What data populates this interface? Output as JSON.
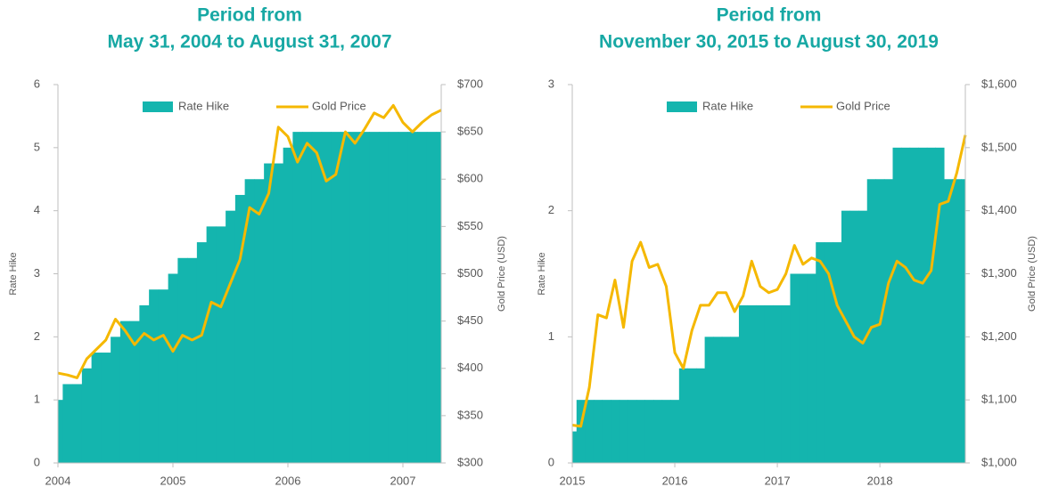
{
  "chart_data": [
    {
      "type": "combo",
      "title": [
        "Period from",
        "May 31, 2004 to August 31, 2007"
      ],
      "ylabel": "Rate Hike",
      "y2label": "Gold Price (USD)",
      "categories": [
        "2004",
        null,
        null,
        null,
        null,
        null,
        null,
        null,
        null,
        null,
        null,
        null,
        "2005",
        null,
        null,
        null,
        null,
        null,
        null,
        null,
        null,
        null,
        null,
        null,
        "2006",
        null,
        null,
        null,
        null,
        null,
        null,
        null,
        null,
        null,
        null,
        null,
        "2007",
        null,
        null,
        null,
        null
      ],
      "series": [
        {
          "name": "Rate Hike",
          "color": "#14b5ae",
          "values": [
            1,
            1.25,
            1.25,
            1.5,
            1.75,
            1.75,
            2,
            2.25,
            2.25,
            2.5,
            2.75,
            2.75,
            3,
            3.25,
            3.25,
            3.5,
            3.75,
            3.75,
            4,
            4.25,
            4.5,
            4.5,
            4.75,
            4.75,
            5,
            5.25,
            5.25,
            5.25,
            5.25,
            5.25,
            5.25,
            5.25,
            5.25,
            5.25,
            5.25,
            5.25,
            5.25,
            5.25,
            5.25,
            5.25,
            5.25
          ]
        },
        {
          "name": "Gold Price",
          "color": "#f5b800",
          "axis": "y2",
          "values": [
            395,
            393,
            390,
            410,
            420,
            430,
            452,
            440,
            425,
            437,
            430,
            435,
            418,
            435,
            430,
            435,
            470,
            465,
            490,
            515,
            570,
            563,
            585,
            655,
            645,
            618,
            638,
            628,
            598,
            605,
            650,
            638,
            653,
            670,
            665,
            678,
            660,
            650,
            660,
            668,
            673
          ]
        }
      ],
      "ylim": [
        0,
        6
      ],
      "yticks": [
        0,
        1,
        2,
        3,
        4,
        5,
        6
      ],
      "y2lim": [
        300,
        700
      ],
      "y2ticks": [
        {
          "value": 300,
          "label": "$300"
        },
        {
          "value": 350,
          "label": "$350"
        },
        {
          "value": 400,
          "label": "$400"
        },
        {
          "value": 450,
          "label": "$450"
        },
        {
          "value": 500,
          "label": "$500"
        },
        {
          "value": 550,
          "label": "$550"
        },
        {
          "value": 600,
          "label": "$600"
        },
        {
          "value": 650,
          "label": "$650"
        },
        {
          "value": 700,
          "label": "$700"
        }
      ]
    },
    {
      "type": "combo",
      "title": [
        "Period from",
        "November 30, 2015 to August 30, 2019"
      ],
      "ylabel": "Rate Hike",
      "y2label": "Gold Price (USD)",
      "categories": [
        "2015",
        null,
        null,
        null,
        null,
        null,
        null,
        null,
        null,
        null,
        null,
        null,
        "2016",
        null,
        null,
        null,
        null,
        null,
        null,
        null,
        null,
        null,
        null,
        null,
        "2017",
        null,
        null,
        null,
        null,
        null,
        null,
        null,
        null,
        null,
        null,
        null,
        "2018",
        null,
        null,
        null,
        null,
        null,
        null,
        null,
        null,
        null,
        null
      ],
      "series": [
        {
          "name": "Rate Hike",
          "color": "#14b5ae",
          "values": [
            0.25,
            0.5,
            0.5,
            0.5,
            0.5,
            0.5,
            0.5,
            0.5,
            0.5,
            0.5,
            0.5,
            0.5,
            0.5,
            0.75,
            0.75,
            0.75,
            1,
            1,
            1,
            1,
            1.25,
            1.25,
            1.25,
            1.25,
            1.25,
            1.25,
            1.5,
            1.5,
            1.5,
            1.75,
            1.75,
            1.75,
            2,
            2,
            2,
            2.25,
            2.25,
            2.25,
            2.5,
            2.5,
            2.5,
            2.5,
            2.5,
            2.5,
            2.25,
            2.25,
            2.25
          ]
        },
        {
          "name": "Gold Price",
          "color": "#f5b800",
          "axis": "y2",
          "values": [
            1060,
            1058,
            1120,
            1235,
            1230,
            1290,
            1215,
            1320,
            1350,
            1310,
            1315,
            1280,
            1175,
            1150,
            1210,
            1250,
            1250,
            1270,
            1270,
            1240,
            1265,
            1320,
            1280,
            1270,
            1275,
            1300,
            1345,
            1315,
            1325,
            1320,
            1300,
            1250,
            1225,
            1200,
            1190,
            1215,
            1220,
            1285,
            1320,
            1310,
            1290,
            1285,
            1305,
            1410,
            1415,
            1460,
            1520
          ]
        }
      ],
      "ylim": [
        0,
        3
      ],
      "yticks": [
        0,
        1,
        2,
        3
      ],
      "y2lim": [
        1000,
        1600
      ],
      "y2ticks": [
        {
          "value": 1000,
          "label": "$1,000"
        },
        {
          "value": 1100,
          "label": "$1,100"
        },
        {
          "value": 1200,
          "label": "$1,200"
        },
        {
          "value": 1300,
          "label": "$1,300"
        },
        {
          "value": 1400,
          "label": "$1,400"
        },
        {
          "value": 1500,
          "label": "$1,500"
        },
        {
          "value": 1600,
          "label": "$1,600"
        }
      ]
    }
  ]
}
